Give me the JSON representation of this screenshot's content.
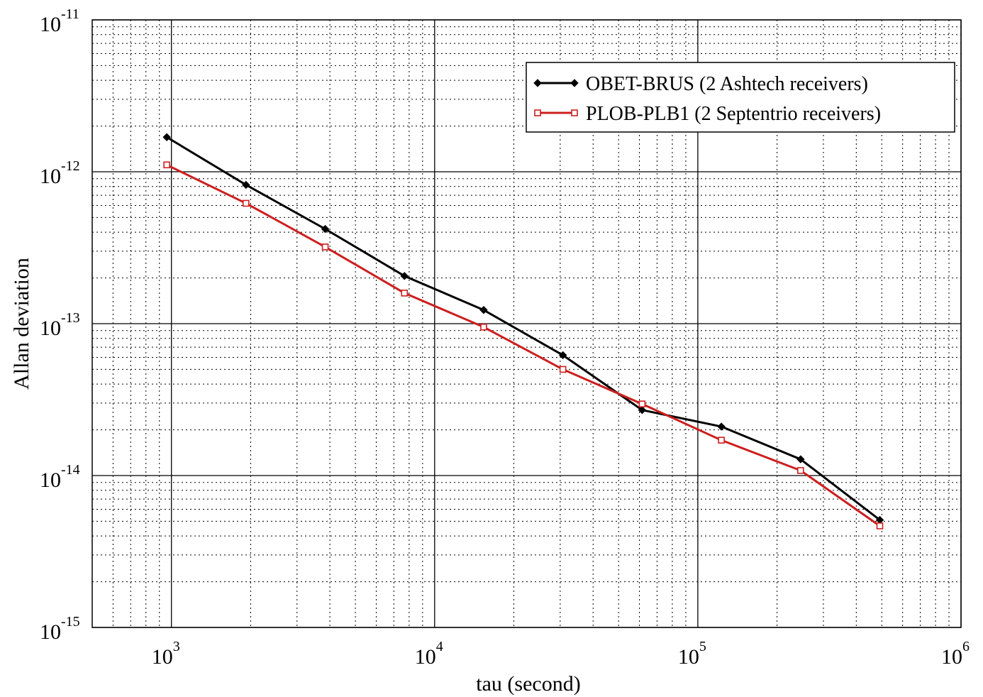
{
  "chart_data": {
    "type": "line",
    "xlabel": "tau (second)",
    "ylabel": "Allan deviation",
    "log_x": true,
    "log_y": true,
    "grid": true,
    "minor_grid": true,
    "legend": "upper right",
    "xlim": [
      500,
      1000000
    ],
    "ylim": [
      1e-15,
      1e-11
    ],
    "xticks": [
      {
        "value": 1000,
        "label": "10",
        "exponent": "3"
      },
      {
        "value": 10000,
        "label": "10",
        "exponent": "4"
      },
      {
        "value": 100000,
        "label": "10",
        "exponent": "5"
      },
      {
        "value": 1000000,
        "label": "10",
        "exponent": "6"
      }
    ],
    "yticks": [
      {
        "value": 1e-15,
        "label": "10",
        "exponent": "-15"
      },
      {
        "value": 1e-14,
        "label": "10",
        "exponent": "-14"
      },
      {
        "value": 1e-13,
        "label": "10",
        "exponent": "-13"
      },
      {
        "value": 1e-12,
        "label": "10",
        "exponent": "-12"
      },
      {
        "value": 1e-11,
        "label": "10",
        "exponent": "-11"
      }
    ],
    "x": [
      960,
      1920,
      3840,
      7680,
      15360,
      30720,
      61440,
      122880,
      245760,
      491520
    ],
    "series": [
      {
        "name": "OBET-BRUS (2 Ashtech receivers)",
        "color": "#000000",
        "marker": "diamond",
        "values": [
          1.69e-12,
          8.2e-13,
          4.2e-13,
          2.06e-13,
          1.23e-13,
          6.2e-14,
          2.7e-14,
          2.1e-14,
          1.28e-14,
          5.1e-15
        ]
      },
      {
        "name": "PLOB-PLB1 (2 Septentrio receivers)",
        "color": "#cc1f1f",
        "marker": "square",
        "values": [
          1.11e-12,
          6.2e-13,
          3.2e-13,
          1.59e-13,
          9.5e-14,
          5e-14,
          2.96e-14,
          1.71e-14,
          1.08e-14,
          4.66e-15
        ]
      }
    ]
  }
}
